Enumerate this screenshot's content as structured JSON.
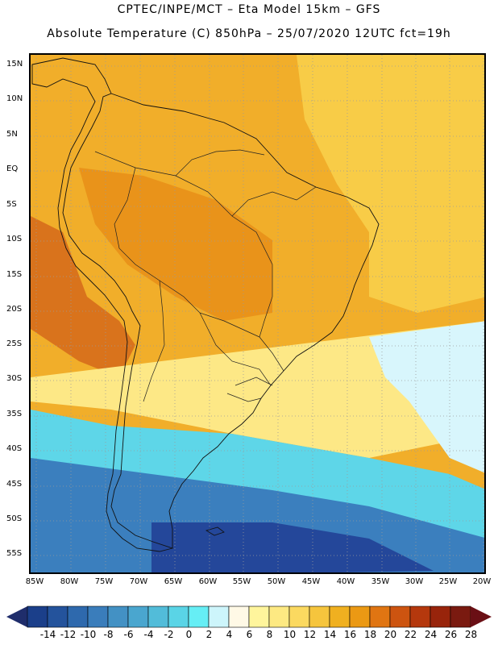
{
  "header": {
    "title_line1": "CPTEC/INPE/MCT –  Eta Model 15km – GFS",
    "title_line2": "Absolute Temperature (C) 850hPa – 25/07/2020 12UTC fct=19h"
  },
  "axes": {
    "lat_labels": [
      "15N",
      "10N",
      "5N",
      "EQ",
      "5S",
      "10S",
      "15S",
      "20S",
      "25S",
      "30S",
      "35S",
      "40S",
      "45S",
      "50S",
      "55S"
    ],
    "lon_labels": [
      "85W",
      "80W",
      "75W",
      "70W",
      "65W",
      "60W",
      "55W",
      "50W",
      "45W",
      "40W",
      "35W",
      "30W",
      "25W",
      "20W"
    ]
  },
  "colorbar": {
    "labels": [
      "-14",
      "-12",
      "-10",
      "-8",
      "-6",
      "-4",
      "-2",
      "0",
      "2",
      "4",
      "6",
      "8",
      "10",
      "12",
      "14",
      "16",
      "18",
      "20",
      "22",
      "24",
      "26",
      "28"
    ],
    "colors": [
      "#1b3f8a",
      "#24539c",
      "#2e69ad",
      "#3a7dbb",
      "#4391c4",
      "#4aa6cf",
      "#52bcd9",
      "#5ad4e6",
      "#66eef5",
      "#cdf5fb",
      "#fff9e6",
      "#fff59c",
      "#fde982",
      "#fbd960",
      "#f6c53d",
      "#f0b020",
      "#eb9914",
      "#e07512",
      "#cd5410",
      "#b5380d",
      "#98240b",
      "#7a1a10"
    ],
    "left_arrow_color": "#1f2d6b",
    "right_arrow_color": "#6a0f15"
  },
  "map": {
    "background_color": "#f1ae2a",
    "warm_color": "#e9931a",
    "hot_color": "#d9731c",
    "mild_color": "#f8cc47",
    "cool_color": "#fde886",
    "cold_light_color": "#d8f6fc",
    "cyan_color": "#5ed6e8",
    "blue_mid_color": "#3b7fbe",
    "blue_dark_color": "#24479a"
  }
}
